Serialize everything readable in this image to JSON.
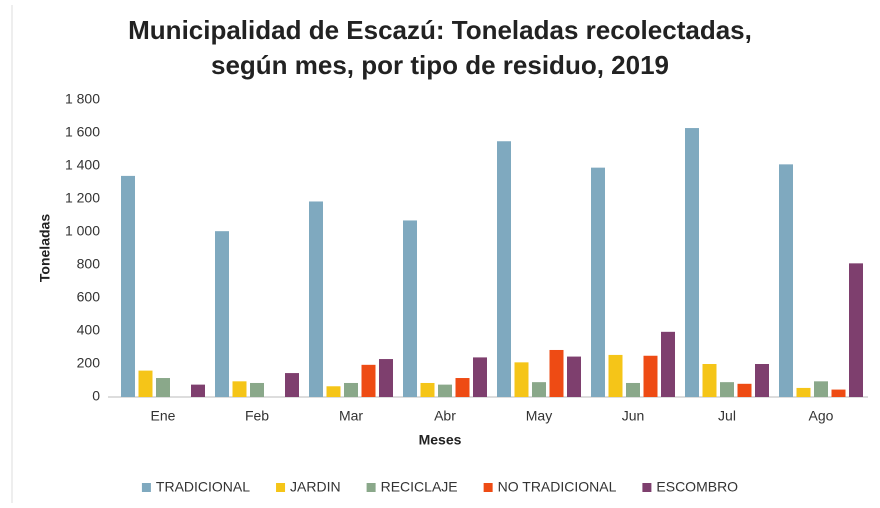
{
  "chart_data": {
    "type": "bar",
    "title": [
      "Municipalidad de Escazú: Toneladas recolectadas,",
      "según mes, por tipo de residuo, 2019"
    ],
    "x_label": "Meses",
    "y_label": "Toneladas",
    "categories": [
      "Ene",
      "Feb",
      "Mar",
      "Abr",
      "May",
      "Jun",
      "Jul",
      "Ago"
    ],
    "series": [
      {
        "name": "TRADICIONAL",
        "color": "#7fa9bf",
        "values": [
          1340,
          1005,
          1185,
          1070,
          1550,
          1390,
          1630,
          1410
        ]
      },
      {
        "name": "JARDIN",
        "color": "#f5c518",
        "values": [
          160,
          95,
          65,
          85,
          210,
          255,
          200,
          55
        ]
      },
      {
        "name": "RECICLAJE",
        "color": "#8aa88a",
        "values": [
          115,
          85,
          85,
          75,
          90,
          85,
          90,
          95
        ]
      },
      {
        "name": "NO TRADICIONAL",
        "color": "#ee4b14",
        "values": [
          0,
          0,
          195,
          115,
          285,
          250,
          80,
          45
        ]
      },
      {
        "name": "ESCOMBRO",
        "color": "#7e3f6e",
        "values": [
          75,
          145,
          230,
          240,
          245,
          395,
          200,
          810
        ]
      }
    ],
    "ylim": [
      0,
      1800
    ],
    "yticks": [
      0,
      200,
      400,
      600,
      800,
      {
        "value": 1000,
        "label": "1 000"
      },
      {
        "value": 1200,
        "label": "1 200"
      },
      {
        "value": 1400,
        "label": "1 400"
      },
      {
        "value": 1600,
        "label": "1 600"
      },
      {
        "value": 1800,
        "label": "1 800"
      }
    ],
    "grid": false,
    "legend": "bottom"
  }
}
